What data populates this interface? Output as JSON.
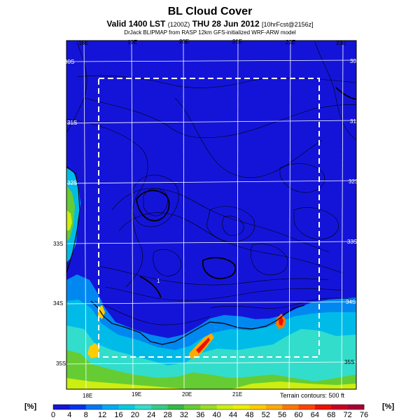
{
  "title": "BL Cloud Cover",
  "subtitle_main": "Valid 1400 LST",
  "subtitle_small_1": "(1200Z)",
  "subtitle_date": "THU 28 Jun 2012",
  "subtitle_small_2": "[10hrFcst@2156z]",
  "credit": "DrJack BLIPMAP from RASP 12km GFS-initialized WRF-ARW model",
  "terrain_note": "Terrain contours: 500 ft",
  "units_left": "[%]",
  "units_right": "[%]",
  "colorbar": {
    "labels": [
      "0",
      "4",
      "8",
      "12",
      "16",
      "20",
      "24",
      "28",
      "32",
      "36",
      "40",
      "44",
      "48",
      "52",
      "56",
      "60",
      "64",
      "68",
      "72",
      "76"
    ],
    "colors": [
      "#1414d8",
      "#0033f0",
      "#0077f5",
      "#00aaf5",
      "#00cce0",
      "#33ddcc",
      "#33cc88",
      "#33bb44",
      "#66cc33",
      "#99dd22",
      "#ccee11",
      "#eeee00",
      "#ffcc00",
      "#ffaa00",
      "#ff7700",
      "#ff4400",
      "#ee1100",
      "#cc0022",
      "#aa0033"
    ]
  },
  "lon_labels_top": [
    "18E",
    "19E",
    "20E",
    "21E",
    "22E",
    "23E"
  ],
  "lon_labels_bottom": [
    "18E",
    "19E",
    "20E",
    "21E"
  ],
  "lat_labels_right": [
    "30S",
    "31S",
    "32S",
    "33S",
    "34S",
    "35S"
  ],
  "lat_labels_left": [
    "30S",
    "31S",
    "32S",
    "33S",
    "34S",
    "35S"
  ],
  "marker": "1"
}
